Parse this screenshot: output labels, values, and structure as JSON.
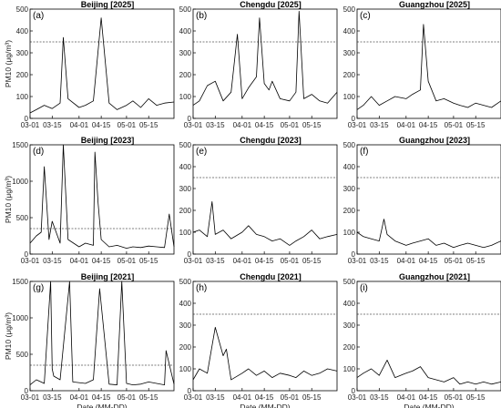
{
  "chart_data": [
    {
      "letter": "(a)",
      "title": "Beijing [2025]",
      "type": "line",
      "ylim": [
        0,
        500
      ],
      "yticks": [
        0,
        100,
        200,
        300,
        400,
        500
      ],
      "ylabel": "PM10 (μg/m³)",
      "xlabel": "",
      "xticks": [
        "03-01",
        "03-15",
        "04-01",
        "04-15",
        "05-01",
        "05-15"
      ],
      "threshold": 350,
      "series": [
        {
          "x": [
            "03-01",
            "03-05",
            "03-10",
            "03-15",
            "03-20",
            "03-22",
            "03-25",
            "04-01",
            "04-05",
            "04-10",
            "04-15",
            "04-20",
            "04-25",
            "05-01",
            "05-05",
            "05-10",
            "05-15",
            "05-20",
            "05-25",
            "05-31"
          ],
          "values": [
            25,
            40,
            60,
            45,
            70,
            370,
            90,
            50,
            60,
            80,
            460,
            70,
            40,
            60,
            80,
            50,
            90,
            60,
            70,
            75
          ]
        }
      ]
    },
    {
      "letter": "(b)",
      "title": "Chengdu [2025]",
      "type": "line",
      "ylim": [
        0,
        500
      ],
      "yticks": [
        0,
        100,
        200,
        300,
        400,
        500
      ],
      "ylabel": "",
      "xlabel": "",
      "xticks": [
        "03-01",
        "03-15",
        "04-01",
        "04-15",
        "05-01",
        "05-15"
      ],
      "threshold": 350,
      "series": [
        {
          "x": [
            "03-01",
            "03-05",
            "03-10",
            "03-15",
            "03-20",
            "03-25",
            "03-29",
            "04-01",
            "04-05",
            "04-10",
            "04-12",
            "04-15",
            "04-18",
            "04-20",
            "04-25",
            "05-01",
            "05-05",
            "05-07",
            "05-10",
            "05-15",
            "05-20",
            "05-25",
            "05-31"
          ],
          "values": [
            60,
            80,
            150,
            170,
            80,
            120,
            385,
            90,
            140,
            190,
            460,
            160,
            130,
            170,
            90,
            80,
            120,
            490,
            90,
            110,
            80,
            70,
            120
          ]
        }
      ]
    },
    {
      "letter": "(c)",
      "title": "Guangzhou [2025]",
      "type": "line",
      "ylim": [
        0,
        500
      ],
      "yticks": [
        0,
        100,
        200,
        300,
        400,
        500
      ],
      "ylabel": "",
      "xlabel": "",
      "xticks": [
        "03-01",
        "03-15",
        "04-01",
        "04-15",
        "05-01",
        "05-15"
      ],
      "threshold": 350,
      "series": [
        {
          "x": [
            "03-01",
            "03-05",
            "03-10",
            "03-15",
            "03-20",
            "03-25",
            "04-01",
            "04-05",
            "04-10",
            "04-12",
            "04-15",
            "04-20",
            "04-25",
            "05-01",
            "05-05",
            "05-10",
            "05-15",
            "05-20",
            "05-25",
            "05-31"
          ],
          "values": [
            40,
            60,
            100,
            60,
            80,
            100,
            90,
            110,
            130,
            430,
            170,
            80,
            90,
            70,
            60,
            50,
            70,
            60,
            50,
            80
          ]
        }
      ]
    },
    {
      "letter": "(d)",
      "title": "Beijing [2023]",
      "type": "line",
      "ylim": [
        0,
        1500
      ],
      "yticks": [
        0,
        500,
        1000,
        1500
      ],
      "ylabel": "PM10 (μg/m³)",
      "xlabel": "",
      "xticks": [
        "03-01",
        "03-15",
        "04-01",
        "04-15",
        "05-01",
        "05-15"
      ],
      "threshold": 350,
      "series": [
        {
          "x": [
            "03-01",
            "03-05",
            "03-08",
            "03-10",
            "03-13",
            "03-15",
            "03-20",
            "03-22",
            "03-25",
            "04-01",
            "04-05",
            "04-10",
            "04-11",
            "04-13",
            "04-15",
            "04-20",
            "04-25",
            "05-01",
            "05-05",
            "05-10",
            "05-15",
            "05-20",
            "05-25",
            "05-28",
            "05-31"
          ],
          "values": [
            150,
            250,
            300,
            1200,
            200,
            450,
            150,
            1500,
            200,
            100,
            150,
            120,
            1400,
            700,
            200,
            100,
            120,
            80,
            100,
            90,
            110,
            100,
            90,
            550,
            100
          ]
        }
      ]
    },
    {
      "letter": "(e)",
      "title": "Chengdu [2023]",
      "type": "line",
      "ylim": [
        0,
        500
      ],
      "yticks": [
        0,
        100,
        200,
        300,
        400,
        500
      ],
      "ylabel": "",
      "xlabel": "",
      "xticks": [
        "03-01",
        "03-15",
        "04-01",
        "04-15",
        "05-01",
        "05-15"
      ],
      "threshold": 350,
      "series": [
        {
          "x": [
            "03-01",
            "03-05",
            "03-10",
            "03-13",
            "03-15",
            "03-20",
            "03-25",
            "04-01",
            "04-05",
            "04-10",
            "04-15",
            "04-20",
            "04-25",
            "05-01",
            "05-05",
            "05-10",
            "05-15",
            "05-20",
            "05-25",
            "05-31"
          ],
          "values": [
            100,
            110,
            80,
            240,
            90,
            110,
            70,
            100,
            130,
            90,
            80,
            60,
            70,
            40,
            60,
            80,
            110,
            70,
            80,
            90
          ]
        }
      ]
    },
    {
      "letter": "(f)",
      "title": "Guangzhou [2023]",
      "type": "line",
      "ylim": [
        0,
        500
      ],
      "yticks": [
        0,
        100,
        200,
        300,
        400,
        500
      ],
      "ylabel": "",
      "xlabel": "",
      "xticks": [
        "03-01",
        "03-15",
        "04-01",
        "04-15",
        "05-01",
        "05-15"
      ],
      "threshold": 350,
      "series": [
        {
          "x": [
            "03-01",
            "03-05",
            "03-10",
            "03-15",
            "03-18",
            "03-20",
            "03-25",
            "04-01",
            "04-05",
            "04-10",
            "04-15",
            "04-20",
            "04-25",
            "05-01",
            "05-05",
            "05-10",
            "05-15",
            "05-20",
            "05-25",
            "05-31"
          ],
          "values": [
            100,
            80,
            70,
            60,
            160,
            90,
            60,
            40,
            50,
            60,
            70,
            40,
            50,
            30,
            40,
            50,
            40,
            30,
            40,
            60
          ]
        }
      ]
    },
    {
      "letter": "(g)",
      "title": "Beijing [2021]",
      "type": "line",
      "ylim": [
        0,
        1500
      ],
      "yticks": [
        0,
        500,
        1000,
        1500
      ],
      "ylabel": "PM10 (μg/m³)",
      "xlabel": "Date (MM-DD)",
      "xticks": [
        "03-01",
        "03-15",
        "04-01",
        "04-15",
        "05-01",
        "05-15"
      ],
      "threshold": 350,
      "series": [
        {
          "x": [
            "03-01",
            "03-05",
            "03-10",
            "03-14",
            "03-15",
            "03-16",
            "03-20",
            "03-26",
            "03-28",
            "04-05",
            "04-10",
            "04-14",
            "04-20",
            "04-25",
            "04-28",
            "05-01",
            "05-05",
            "05-10",
            "05-15",
            "05-20",
            "05-25",
            "05-26",
            "05-31"
          ],
          "values": [
            80,
            150,
            100,
            1500,
            300,
            200,
            150,
            1500,
            120,
            100,
            150,
            1400,
            90,
            80,
            1500,
            100,
            80,
            90,
            120,
            100,
            80,
            550,
            90
          ]
        }
      ]
    },
    {
      "letter": "(h)",
      "title": "Chengdu [2021]",
      "type": "line",
      "ylim": [
        0,
        500
      ],
      "yticks": [
        0,
        100,
        200,
        300,
        400,
        500
      ],
      "ylabel": "",
      "xlabel": "Date (MM-DD)",
      "xticks": [
        "03-01",
        "03-15",
        "04-01",
        "04-15",
        "05-01",
        "05-15"
      ],
      "threshold": 350,
      "series": [
        {
          "x": [
            "03-01",
            "03-05",
            "03-10",
            "03-15",
            "03-20",
            "03-22",
            "03-25",
            "04-01",
            "04-05",
            "04-10",
            "04-15",
            "04-20",
            "04-25",
            "05-01",
            "05-05",
            "05-10",
            "05-15",
            "05-20",
            "05-25",
            "05-31"
          ],
          "values": [
            50,
            100,
            80,
            290,
            160,
            190,
            50,
            80,
            100,
            70,
            90,
            60,
            80,
            70,
            60,
            90,
            70,
            80,
            100,
            90
          ]
        }
      ]
    },
    {
      "letter": "(i)",
      "title": "Guangzhou [2021]",
      "type": "line",
      "ylim": [
        0,
        500
      ],
      "yticks": [
        0,
        100,
        200,
        300,
        400,
        500
      ],
      "ylabel": "",
      "xlabel": "Date (MM-DD)",
      "xticks": [
        "03-01",
        "03-15",
        "04-01",
        "04-15",
        "05-01",
        "05-15"
      ],
      "threshold": 350,
      "series": [
        {
          "x": [
            "03-01",
            "03-05",
            "03-10",
            "03-15",
            "03-20",
            "03-25",
            "04-01",
            "04-05",
            "04-10",
            "04-15",
            "04-20",
            "04-25",
            "05-01",
            "05-05",
            "05-10",
            "05-15",
            "05-20",
            "05-25",
            "05-31"
          ],
          "values": [
            60,
            80,
            100,
            70,
            140,
            60,
            80,
            90,
            110,
            60,
            50,
            40,
            60,
            30,
            40,
            30,
            40,
            30,
            40
          ]
        }
      ]
    }
  ]
}
